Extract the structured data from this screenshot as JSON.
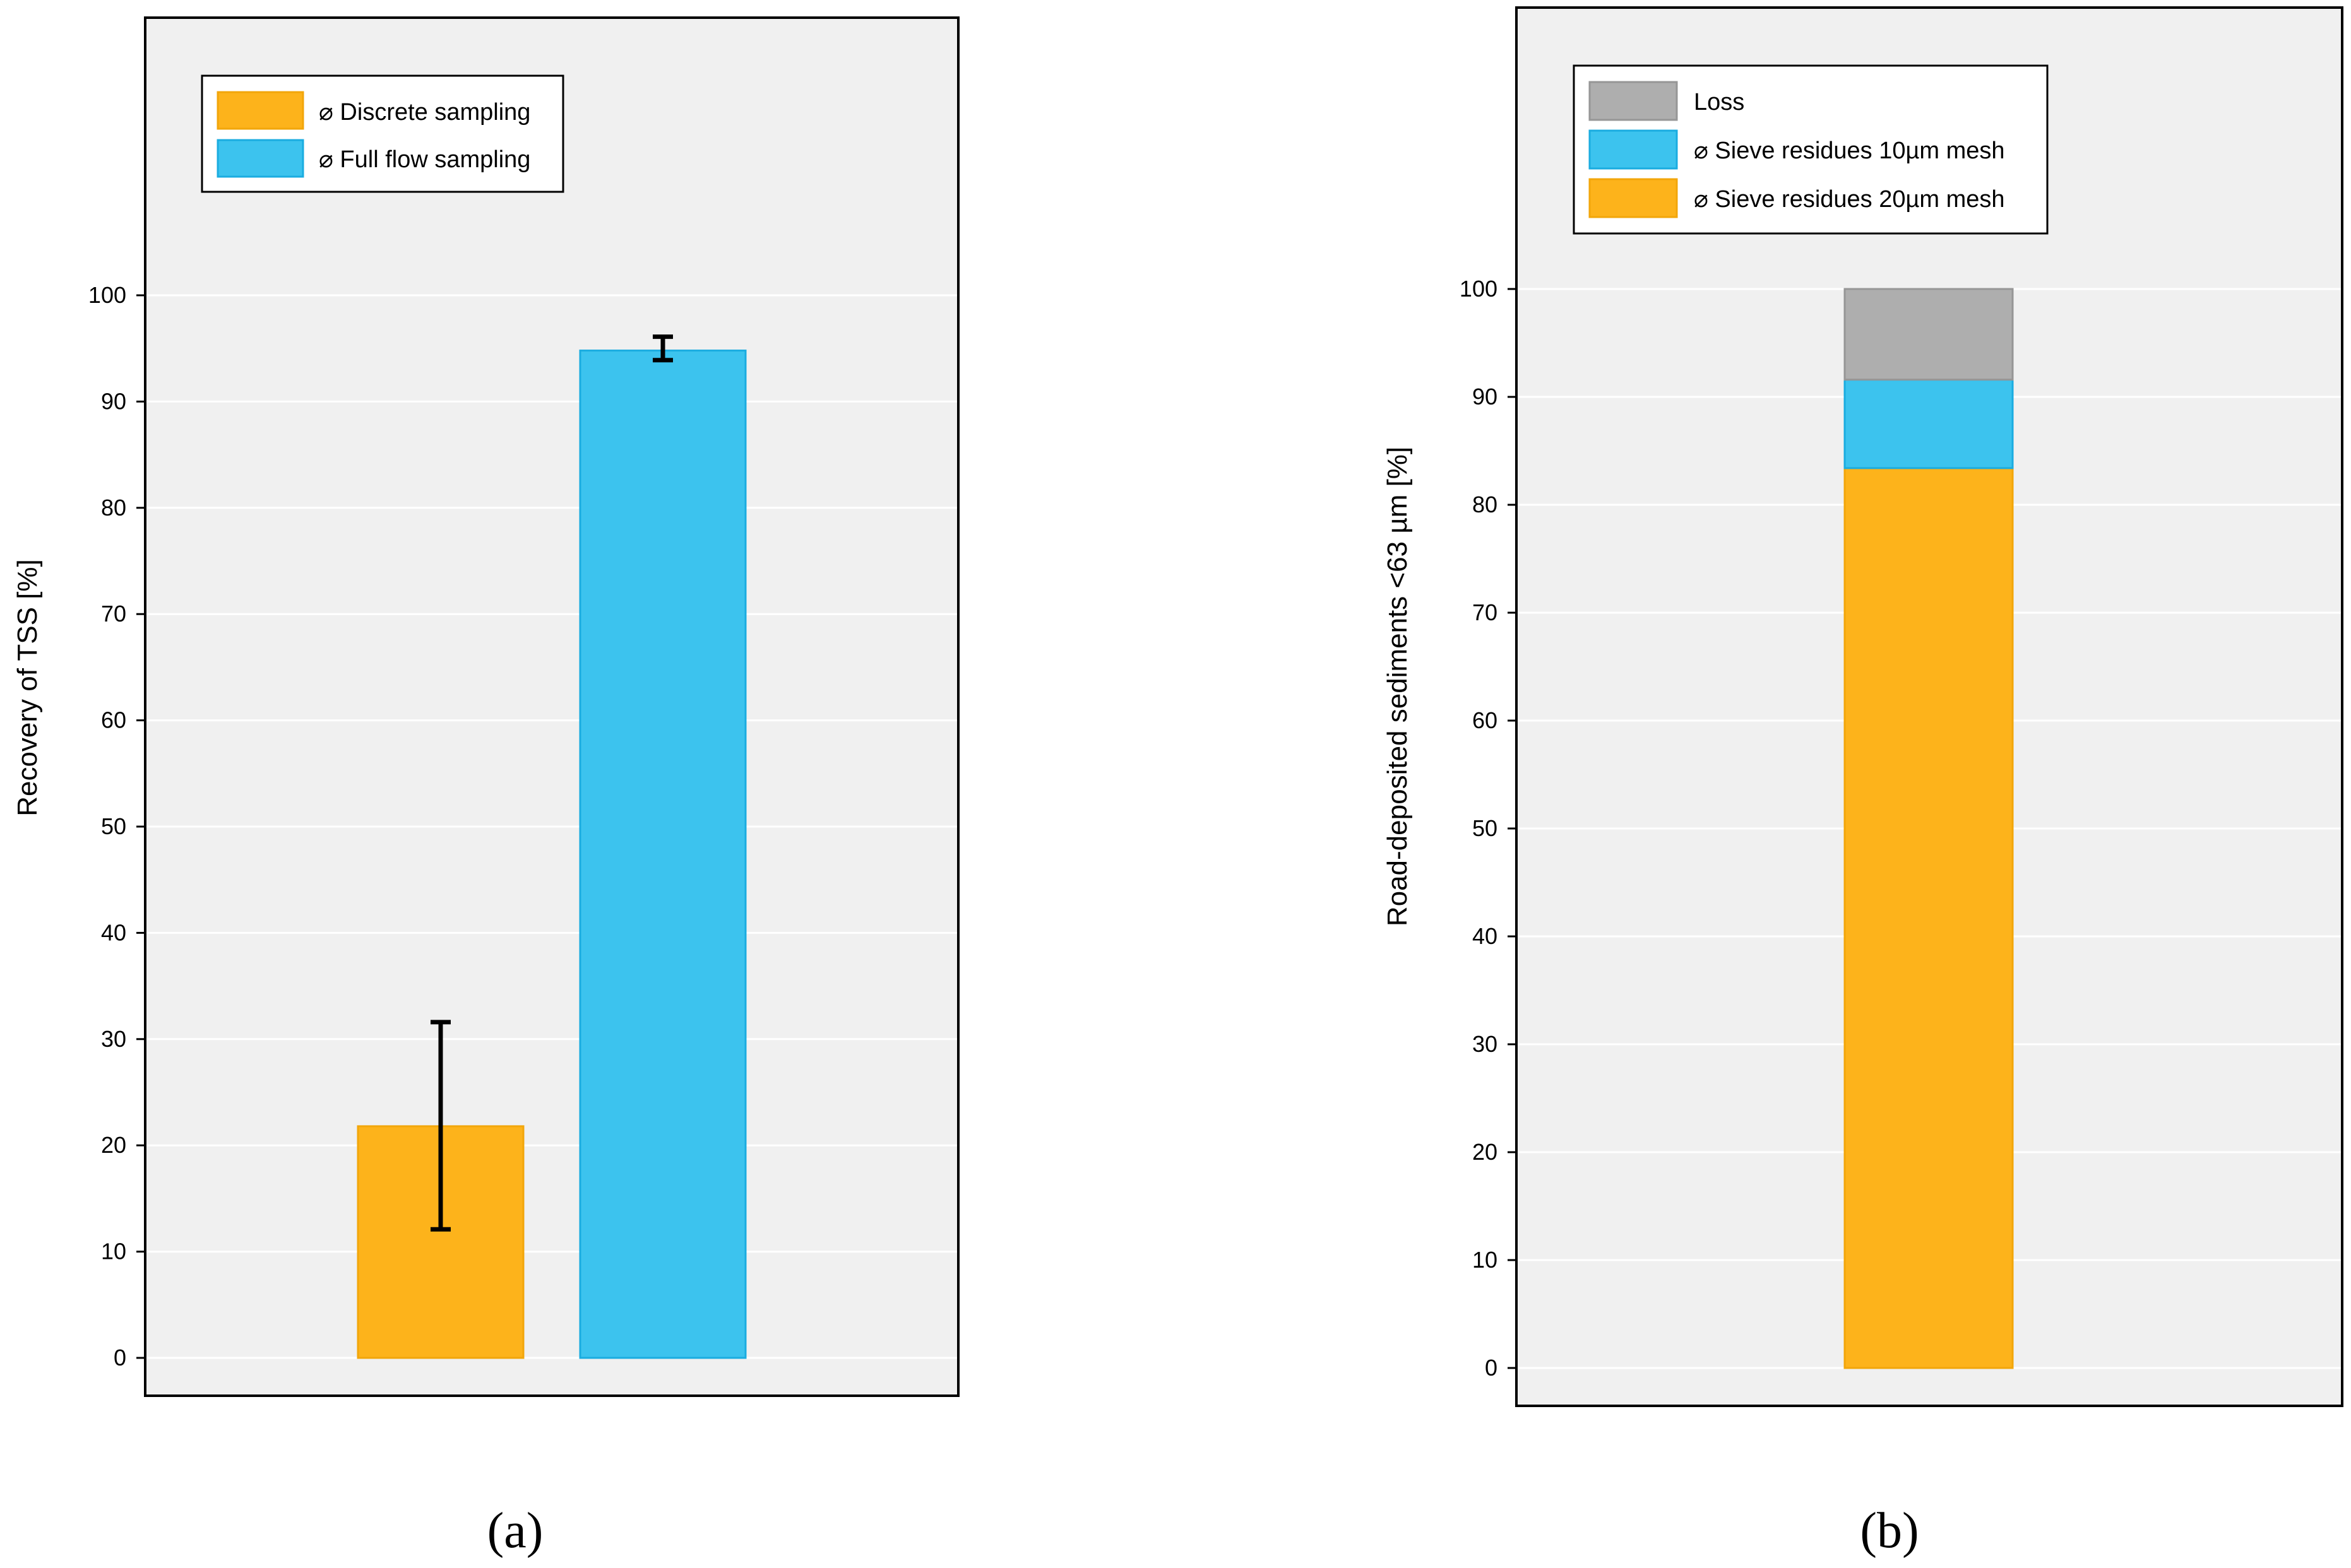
{
  "chart_data": [
    {
      "type": "bar",
      "panel_label": "(a)",
      "ylabel": "Recovery of TSS [%]",
      "ylim": [
        0,
        100
      ],
      "yticks": [
        0,
        10,
        20,
        30,
        40,
        50,
        60,
        70,
        80,
        90,
        100
      ],
      "grid": true,
      "legend_position": "top-left",
      "bars": [
        {
          "name": "⌀ Discrete sampling",
          "value": 21.8,
          "error_low": 12.1,
          "error_high": 31.6,
          "color": "#FDB31B",
          "edge": "#F2A60A"
        },
        {
          "name": "⌀ Full flow sampling",
          "value": 94.8,
          "error_low": 93.9,
          "error_high": 96.1,
          "color": "#3CC3EE",
          "edge": "#1AACE0"
        }
      ]
    },
    {
      "type": "bar",
      "stacked": true,
      "panel_label": "(b)",
      "ylabel": "Road-deposited sediments <63 µm [%]",
      "ylim": [
        0,
        100
      ],
      "yticks": [
        0,
        10,
        20,
        30,
        40,
        50,
        60,
        70,
        80,
        90,
        100
      ],
      "grid": true,
      "legend_position": "top-left",
      "legend_order": [
        "Loss",
        "⌀ Sieve residues 10µm mesh",
        "⌀ Sieve residues 20µm mesh"
      ],
      "series": [
        {
          "name": "⌀ Sieve residues 20µm mesh",
          "value": 83.4,
          "color": "#FDB31B",
          "edge": "#F2A60A"
        },
        {
          "name": "⌀ Sieve residues 10µm mesh",
          "value": 8.2,
          "color": "#3CC3EE",
          "edge": "#1AACE0"
        },
        {
          "name": "Loss",
          "value": 8.4,
          "color": "#AEAEAE",
          "edge": "#969696"
        }
      ]
    }
  ],
  "colors": {
    "plot_background": "#F0F0F0",
    "gridline": "#FFFFFF",
    "frame": "#000000"
  }
}
